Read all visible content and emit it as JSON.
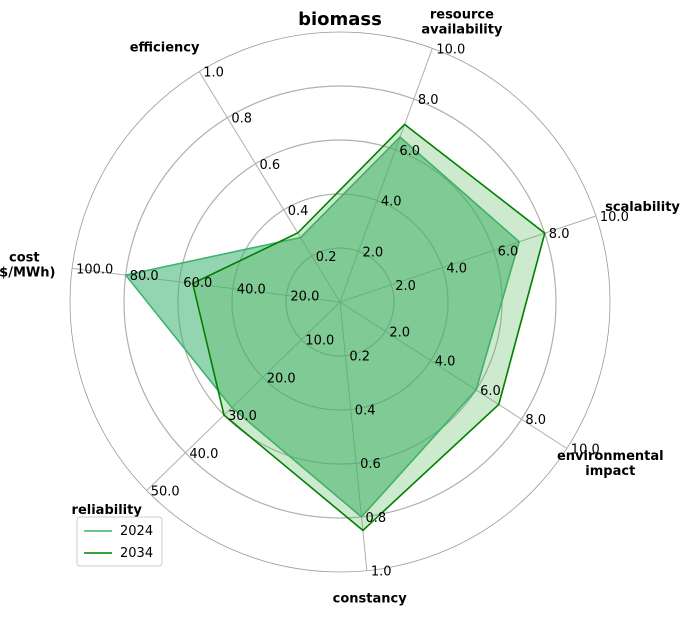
{
  "chart_data": {
    "type": "radar",
    "title": "biomass",
    "axes": [
      {
        "label": [
          "resource",
          "availability"
        ],
        "max": 10,
        "ticks": [
          "2.0",
          "4.0",
          "6.0",
          "8.0",
          "10.0"
        ]
      },
      {
        "label": [
          "scalability"
        ],
        "max": 10,
        "ticks": [
          "2.0",
          "4.0",
          "6.0",
          "8.0",
          "10.0"
        ]
      },
      {
        "label": [
          "environmental",
          "impact"
        ],
        "max": 10,
        "ticks": [
          "2.0",
          "4.0",
          "6.0",
          "8.0",
          "10.0"
        ]
      },
      {
        "label": [
          "constancy"
        ],
        "max": 1,
        "ticks": [
          "0.2",
          "0.4",
          "0.6",
          "0.8",
          "1.0"
        ]
      },
      {
        "label": [
          "reliability"
        ],
        "max": 50,
        "ticks": [
          "10.0",
          "20.0",
          "30.0",
          "40.0",
          "50.0"
        ]
      },
      {
        "label": [
          "cost",
          "($/MWh)"
        ],
        "max": 100,
        "ticks": [
          "20.0",
          "40.0",
          "60.0",
          "80.0",
          "100.0"
        ]
      },
      {
        "label": [
          "efficiency"
        ],
        "max": 1,
        "ticks": [
          "0.2",
          "0.4",
          "0.6",
          "0.8",
          "1.0"
        ]
      }
    ],
    "series": [
      {
        "name": "2024",
        "values": [
          6.5,
          7.0,
          6.0,
          0.8,
          28,
          80,
          0.28
        ],
        "color": "#3cb371",
        "fill": "#3cb371",
        "fill_opacity": 0.55
      },
      {
        "name": "2034",
        "values": [
          7.0,
          8.0,
          7.0,
          0.85,
          30,
          55,
          0.3
        ],
        "color": "#008000",
        "fill": "#4caf50",
        "fill_opacity": 0.28
      }
    ],
    "legend_position": "lower-left",
    "grid": true
  }
}
